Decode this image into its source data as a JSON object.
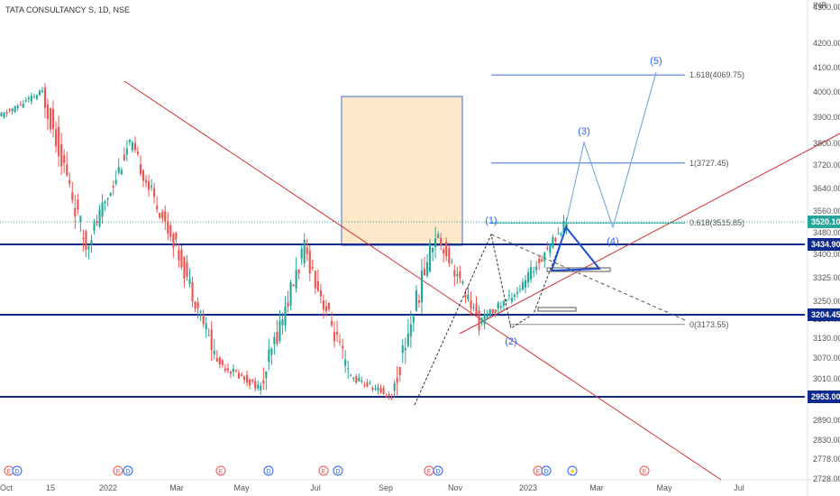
{
  "header": {
    "title": "TATA CONSULTANCY S, 1D, NSE"
  },
  "axis": {
    "currency": "INR",
    "y_ticks": [
      "4300.00",
      "4200.00",
      "4100.00",
      "4000.00",
      "3900.00",
      "3800.00",
      "3720.00",
      "3640.00",
      "3560.00",
      "3480.00",
      "3400.00",
      "3325.00",
      "3250.00",
      "3190.00",
      "3130.00",
      "3070.00",
      "3010.00",
      "2950.00",
      "2890.00",
      "2830.00",
      "2778.00",
      "2728.00"
    ],
    "x_ticks": [
      "Oct",
      "15",
      "2022",
      "Mar",
      "May",
      "Jul",
      "Sep",
      "Nov",
      "2023",
      "Mar",
      "May",
      "Jul"
    ]
  },
  "price_badges": [
    {
      "label": "3520.10",
      "color": "#26a69a"
    },
    {
      "label": "3434.90",
      "color": "#0d2b8c"
    },
    {
      "label": "3204.45",
      "color": "#0d2b8c"
    },
    {
      "label": "2953.00",
      "color": "#0d2b8c"
    }
  ],
  "fib_labels": {
    "f1618": "1.618(4069.75)",
    "f1": "1(3727.45)",
    "f0618": "0.618(3515.85)",
    "f0": "0(3173.55)"
  },
  "wave_labels": {
    "w1": "(1)",
    "w2": "(2)",
    "w3": "(3)",
    "w4": "(4)",
    "w5": "(5)"
  },
  "event_markers": [
    "E",
    "D",
    "E",
    "D",
    "E",
    "D",
    "E",
    "D",
    "E",
    "D",
    "E",
    "D",
    "⚡",
    "E"
  ],
  "colors": {
    "up": "#26a69a",
    "down": "#ef5350",
    "support": "#0d2b8c",
    "trendline": "#d32f2f",
    "fib": "#3f6ed6",
    "projection": "#64a0e0",
    "wave_label": "#2962ff",
    "zone": "#fde9c9"
  },
  "chart_data": {
    "type": "candlestick",
    "title": "TATA CONSULTANCY S, 1D, NSE",
    "y_unit": "INR",
    "ylim": [
      2728,
      4300
    ],
    "horizontal_levels": [
      3434.9,
      3204.45,
      2953.0
    ],
    "last_price": 3520.1,
    "fibonacci": [
      {
        "ratio": "1.618",
        "price": 4069.75
      },
      {
        "ratio": "1",
        "price": 3727.45
      },
      {
        "ratio": "0.618",
        "price": 3515.85
      },
      {
        "ratio": "0",
        "price": 3173.55
      }
    ],
    "elliott_waves": [
      "(1)",
      "(2)",
      "(3)",
      "(4)",
      "(5)"
    ],
    "swing_points": [
      {
        "x": "Oct",
        "price": 3900
      },
      {
        "x": "2022",
        "price": 4000
      },
      {
        "x": "Mar",
        "price": 3430
      },
      {
        "x": "Apr",
        "price": 3800
      },
      {
        "x": "May",
        "price": 3450
      },
      {
        "x": "Jun",
        "price": 3060
      },
      {
        "x": "Jul",
        "price": 2980
      },
      {
        "x": "Aug",
        "price": 3420
      },
      {
        "x": "Sep",
        "price": 3020
      },
      {
        "x": "Oct",
        "price": 2953
      },
      {
        "x": "Nov",
        "price": 3480
      },
      {
        "x": "Dec",
        "price": 3180
      },
      {
        "x": "2023",
        "price": 3300
      },
      {
        "x": "Feb",
        "price": 3520
      }
    ]
  }
}
